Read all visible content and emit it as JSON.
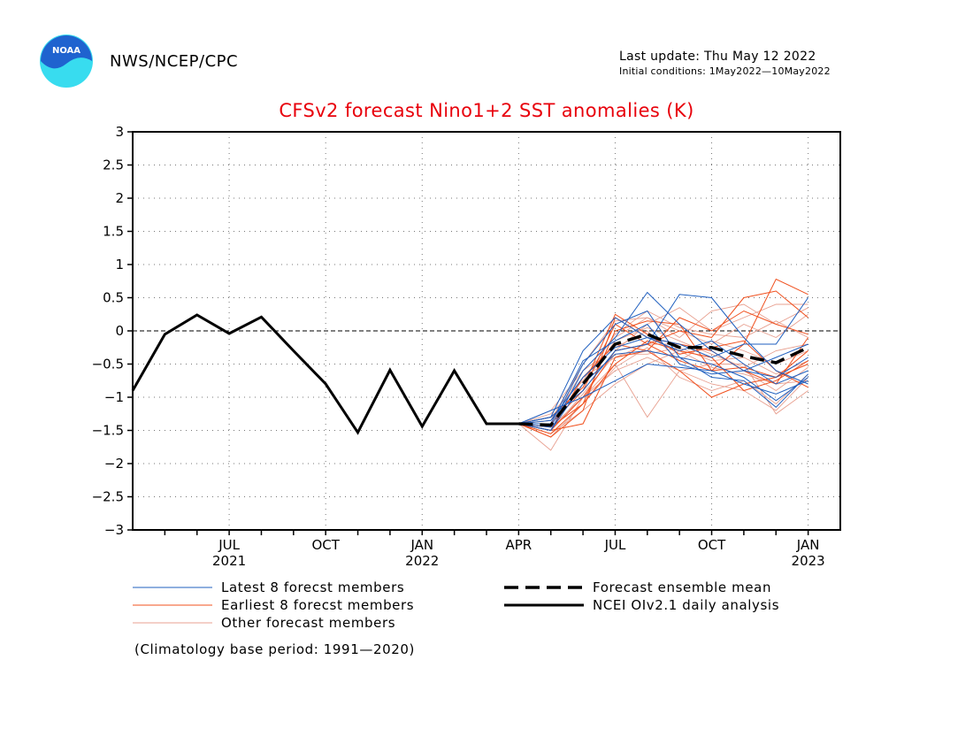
{
  "header": {
    "agency": "NWS/NCEP/CPC",
    "logo_text": "NOAA",
    "last_update": "Last update: Thu May 12 2022",
    "initial_conditions": "Initial conditions: 1May2022—10May2022"
  },
  "note": "(Climatology base period: 1991—2020)",
  "colors": {
    "title": "#e8000b",
    "latest": "#1f5fbf",
    "earliest": "#f0501e",
    "other": "#e8a090",
    "mean": "#000000",
    "observed": "#000000",
    "logo_outer": "#38dcef",
    "logo_inner": "#1f63cf"
  },
  "chart_data": {
    "type": "line",
    "title": "CFSv2 forecast Nino1+2 SST anomalies (K)",
    "xlabel": "",
    "ylabel": "",
    "ylim": [
      -3,
      3
    ],
    "yticks": [
      3,
      2.5,
      2,
      1.5,
      1,
      0.5,
      0,
      -0.5,
      -1,
      -1.5,
      -2,
      -2.5,
      -3
    ],
    "ytick_labels": [
      "3",
      "2.5",
      "2",
      "1.5",
      "1",
      "0.5",
      "0",
      "−0.5",
      "−1",
      "−1.5",
      "−2",
      "−2.5",
      "−3"
    ],
    "x_range": [
      "2021-04",
      "2023-02"
    ],
    "x_months": [
      "2021-05",
      "2021-06",
      "2021-07",
      "2021-08",
      "2021-09",
      "2021-10",
      "2021-11",
      "2021-12",
      "2022-01",
      "2022-02",
      "2022-03",
      "2022-04",
      "2022-05",
      "2022-06",
      "2022-07",
      "2022-08",
      "2022-09",
      "2022-10",
      "2022-11",
      "2022-12",
      "2023-01"
    ],
    "xticks": [
      {
        "month": "2021-07",
        "label": "JUL",
        "year": "2021"
      },
      {
        "month": "2021-10",
        "label": "OCT",
        "year": ""
      },
      {
        "month": "2022-01",
        "label": "JAN",
        "year": "2022"
      },
      {
        "month": "2022-04",
        "label": "APR",
        "year": ""
      },
      {
        "month": "2022-07",
        "label": "JUL",
        "year": ""
      },
      {
        "month": "2022-10",
        "label": "OCT",
        "year": ""
      },
      {
        "month": "2023-01",
        "label": "JAN",
        "year": "2023"
      }
    ],
    "grid": true,
    "zero_line": true,
    "legend": [
      {
        "label": "Latest 8 forecst members",
        "style": "latest"
      },
      {
        "label": "Earliest 8 forecst members",
        "style": "earliest"
      },
      {
        "label": "Other forecast members",
        "style": "other"
      },
      {
        "label": "Forecast ensemble mean",
        "style": "mean"
      },
      {
        "label": "NCEI OIv2.1 daily analysis",
        "style": "observed"
      }
    ],
    "observed": {
      "name": "NCEI OIv2.1 daily analysis",
      "x": [
        "2021-04",
        "2021-05",
        "2021-06",
        "2021-07",
        "2021-08",
        "2021-09",
        "2021-10",
        "2021-11",
        "2021-12",
        "2022-01",
        "2022-02",
        "2022-03",
        "2022-04"
      ],
      "values": [
        -0.9,
        -0.05,
        0.24,
        -0.04,
        0.21,
        -0.3,
        -0.8,
        -1.53,
        -0.59,
        -1.44,
        -0.6,
        -1.4,
        -1.4
      ]
    },
    "ensemble_mean": {
      "name": "Forecast ensemble mean",
      "x": [
        "2022-04",
        "2022-05",
        "2022-06",
        "2022-07",
        "2022-08",
        "2022-09",
        "2022-10",
        "2022-11",
        "2022-12",
        "2023-01"
      ],
      "values": [
        -1.4,
        -1.42,
        -0.8,
        -0.2,
        -0.05,
        -0.25,
        -0.25,
        -0.38,
        -0.48,
        -0.25
      ]
    },
    "members_x": [
      "2022-04",
      "2022-05",
      "2022-06",
      "2022-07",
      "2022-08",
      "2022-09",
      "2022-10",
      "2022-11",
      "2022-12",
      "2023-01"
    ],
    "members": [
      {
        "group": "latest",
        "values": [
          -1.4,
          -1.5,
          -0.6,
          -0.1,
          0.58,
          0.1,
          -0.3,
          -0.6,
          -0.4,
          -0.2
        ]
      },
      {
        "group": "latest",
        "values": [
          -1.4,
          -1.3,
          -0.9,
          -0.3,
          -0.2,
          0.55,
          0.5,
          -0.1,
          -0.6,
          -0.8
        ]
      },
      {
        "group": "latest",
        "values": [
          -1.4,
          -1.45,
          -0.5,
          0.1,
          0.3,
          -0.4,
          -0.7,
          -0.75,
          -1.15,
          -0.65
        ]
      },
      {
        "group": "latest",
        "values": [
          -1.4,
          -1.2,
          -1.0,
          -0.75,
          -0.5,
          -0.55,
          -0.6,
          -0.8,
          -0.95,
          -0.75
        ]
      },
      {
        "group": "latest",
        "values": [
          -1.4,
          -1.35,
          -0.7,
          -0.25,
          -0.1,
          -0.3,
          -0.15,
          -0.5,
          -0.8,
          -0.6
        ]
      },
      {
        "group": "latest",
        "values": [
          -1.4,
          -1.3,
          -0.3,
          0.2,
          -0.1,
          -0.2,
          -0.4,
          -0.2,
          -0.2,
          0.5
        ]
      },
      {
        "group": "latest",
        "values": [
          -1.4,
          -1.5,
          -0.8,
          -0.35,
          -0.3,
          -0.4,
          -0.5,
          -0.7,
          -1.05,
          -0.7
        ]
      },
      {
        "group": "latest",
        "values": [
          -1.4,
          -1.4,
          -0.45,
          -0.15,
          0.1,
          -0.5,
          -0.65,
          -0.6,
          -0.7,
          -0.4
        ]
      },
      {
        "group": "earliest",
        "values": [
          -1.4,
          -1.55,
          -1.1,
          0.0,
          0.15,
          0.1,
          -0.6,
          -0.2,
          0.78,
          0.55
        ]
      },
      {
        "group": "earliest",
        "values": [
          -1.4,
          -1.5,
          -1.4,
          -0.4,
          -0.3,
          -0.6,
          -1.0,
          -0.8,
          -0.7,
          -0.3
        ]
      },
      {
        "group": "earliest",
        "values": [
          -1.4,
          -1.6,
          -1.2,
          0.2,
          -0.1,
          -0.2,
          -0.3,
          -0.6,
          -0.8,
          -0.1
        ]
      },
      {
        "group": "earliest",
        "values": [
          -1.4,
          -1.4,
          -0.9,
          0.1,
          -0.2,
          0.0,
          -0.1,
          0.5,
          0.6,
          0.2
        ]
      },
      {
        "group": "earliest",
        "values": [
          -1.4,
          -1.5,
          -1.0,
          -0.3,
          -0.2,
          -0.45,
          -0.6,
          -0.55,
          -0.7,
          -0.5
        ]
      },
      {
        "group": "earliest",
        "values": [
          -1.4,
          -1.5,
          -0.7,
          -0.2,
          -0.3,
          0.2,
          0.0,
          0.3,
          0.1,
          -0.05
        ]
      },
      {
        "group": "earliest",
        "values": [
          -1.4,
          -1.45,
          -1.1,
          -0.5,
          -0.15,
          -0.3,
          -0.4,
          -0.9,
          -0.75,
          -0.45
        ]
      },
      {
        "group": "earliest",
        "values": [
          -1.4,
          -1.3,
          -0.85,
          0.25,
          -0.05,
          -0.35,
          -0.25,
          -0.15,
          -0.6,
          -0.85
        ]
      },
      {
        "group": "other",
        "values": [
          -1.4,
          -1.8,
          -1.0,
          -0.5,
          -1.3,
          -0.6,
          -0.5,
          -0.5,
          -1.25,
          -0.9
        ]
      },
      {
        "group": "other",
        "values": [
          -1.4,
          -1.2,
          -0.6,
          -0.1,
          0.2,
          -0.1,
          0.3,
          0.4,
          0.1,
          0.35
        ]
      },
      {
        "group": "other",
        "values": [
          -1.4,
          -1.3,
          -0.9,
          -0.3,
          0.1,
          0.35,
          0.0,
          0.2,
          0.4,
          0.4
        ]
      },
      {
        "group": "other",
        "values": [
          -1.4,
          -1.5,
          -0.7,
          -0.4,
          -0.2,
          -0.2,
          -0.3,
          -0.6,
          -0.9,
          -0.55
        ]
      },
      {
        "group": "other",
        "values": [
          -1.4,
          -1.45,
          -1.0,
          -0.6,
          -0.4,
          -0.6,
          -0.8,
          -0.9,
          -1.2,
          -0.7
        ]
      },
      {
        "group": "other",
        "values": [
          -1.4,
          -1.35,
          -0.5,
          0.15,
          0.2,
          0.0,
          -0.2,
          0.1,
          -0.1,
          0.25
        ]
      },
      {
        "group": "other",
        "values": [
          -1.4,
          -1.55,
          -1.2,
          -0.8,
          -0.5,
          -0.3,
          -0.55,
          -0.65,
          -0.8,
          -0.75
        ]
      },
      {
        "group": "other",
        "values": [
          -1.4,
          -1.4,
          -0.6,
          -0.25,
          0.0,
          -0.45,
          -0.15,
          -0.3,
          -0.5,
          -0.3
        ]
      },
      {
        "group": "other",
        "values": [
          -1.4,
          -1.6,
          -1.1,
          -0.55,
          -0.25,
          -0.7,
          -0.9,
          -0.75,
          -1.1,
          -0.65
        ]
      },
      {
        "group": "other",
        "values": [
          -1.4,
          -1.25,
          -0.75,
          -0.05,
          0.3,
          0.05,
          -0.05,
          -0.1,
          0.15,
          -0.1
        ]
      },
      {
        "group": "other",
        "values": [
          -1.4,
          -1.5,
          -0.95,
          -0.35,
          -0.35,
          -0.25,
          -0.45,
          -0.4,
          -0.65,
          -0.45
        ]
      },
      {
        "group": "other",
        "values": [
          -1.4,
          -1.35,
          -0.8,
          -0.15,
          0.05,
          -0.15,
          -0.35,
          -0.55,
          -0.3,
          -0.2
        ]
      }
    ]
  }
}
